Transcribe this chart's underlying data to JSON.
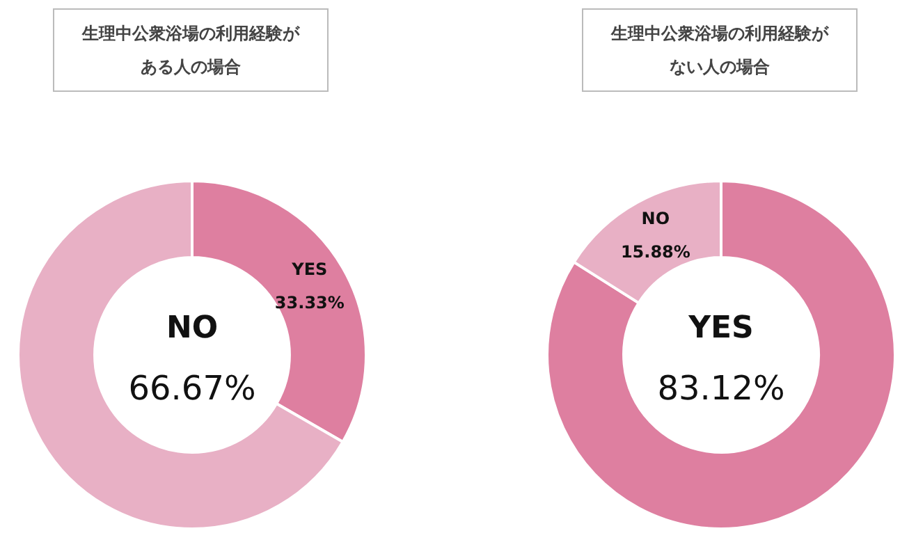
{
  "chart_data": [
    {
      "type": "donut",
      "title": "生理中公衆浴場の利用経験がある人の場合",
      "categories": [
        "YES",
        "NO"
      ],
      "values": [
        33.33,
        66.67
      ],
      "colors": [
        "#de7fa0",
        "#e8b0c5"
      ],
      "value_labels": [
        "33.33%",
        "66.67%"
      ],
      "legend": false
    },
    {
      "type": "donut",
      "title": "生理中公衆浴場の利用経験がない人の場合",
      "categories": [
        "YES",
        "NO"
      ],
      "values": [
        83.12,
        15.88
      ],
      "colors": [
        "#de7fa0",
        "#e8b0c5"
      ],
      "value_labels": [
        "83.12%",
        "15.88%"
      ],
      "legend": false
    }
  ]
}
